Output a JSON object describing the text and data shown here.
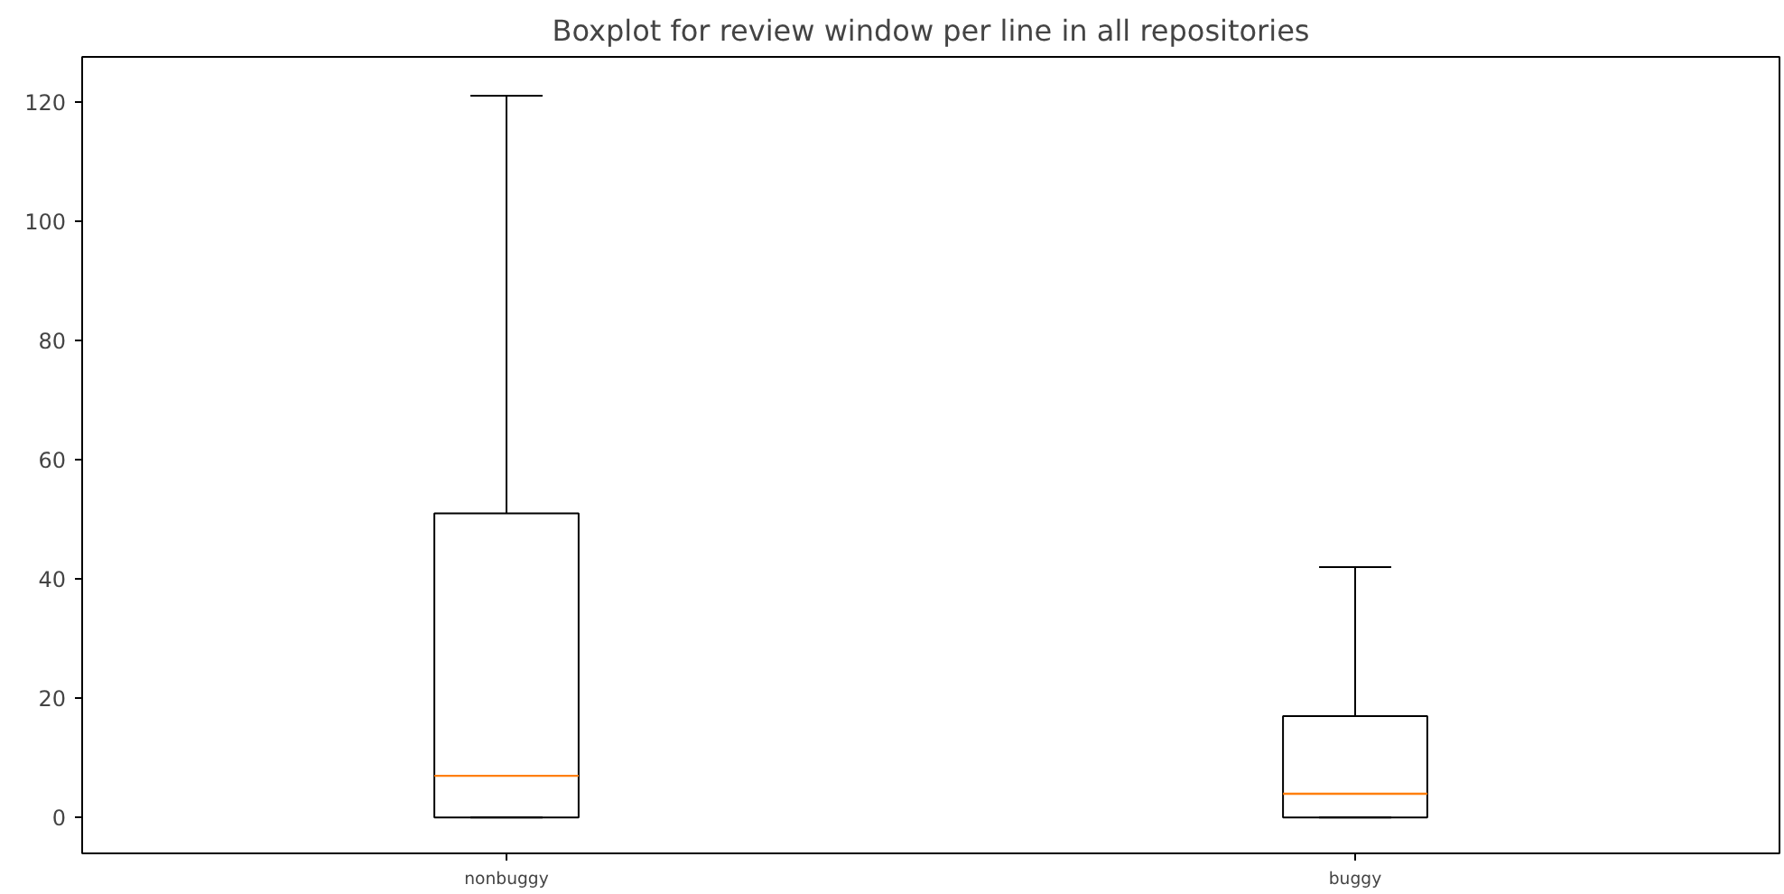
{
  "chart_data": {
    "type": "box",
    "title": "Boxplot for review window per line in all repositories",
    "categories": [
      "nonbuggy",
      "buggy"
    ],
    "boxes": [
      {
        "low": 0,
        "q1": 0,
        "median": 7,
        "q3": 51,
        "high": 121
      },
      {
        "low": 0,
        "q1": 0,
        "median": 4,
        "q3": 17,
        "high": 42
      }
    ],
    "color": "#000000",
    "ylim": [
      -6,
      127.5
    ],
    "yticks": [
      0,
      20,
      40,
      60,
      80,
      100,
      120
    ],
    "grid": false
  }
}
